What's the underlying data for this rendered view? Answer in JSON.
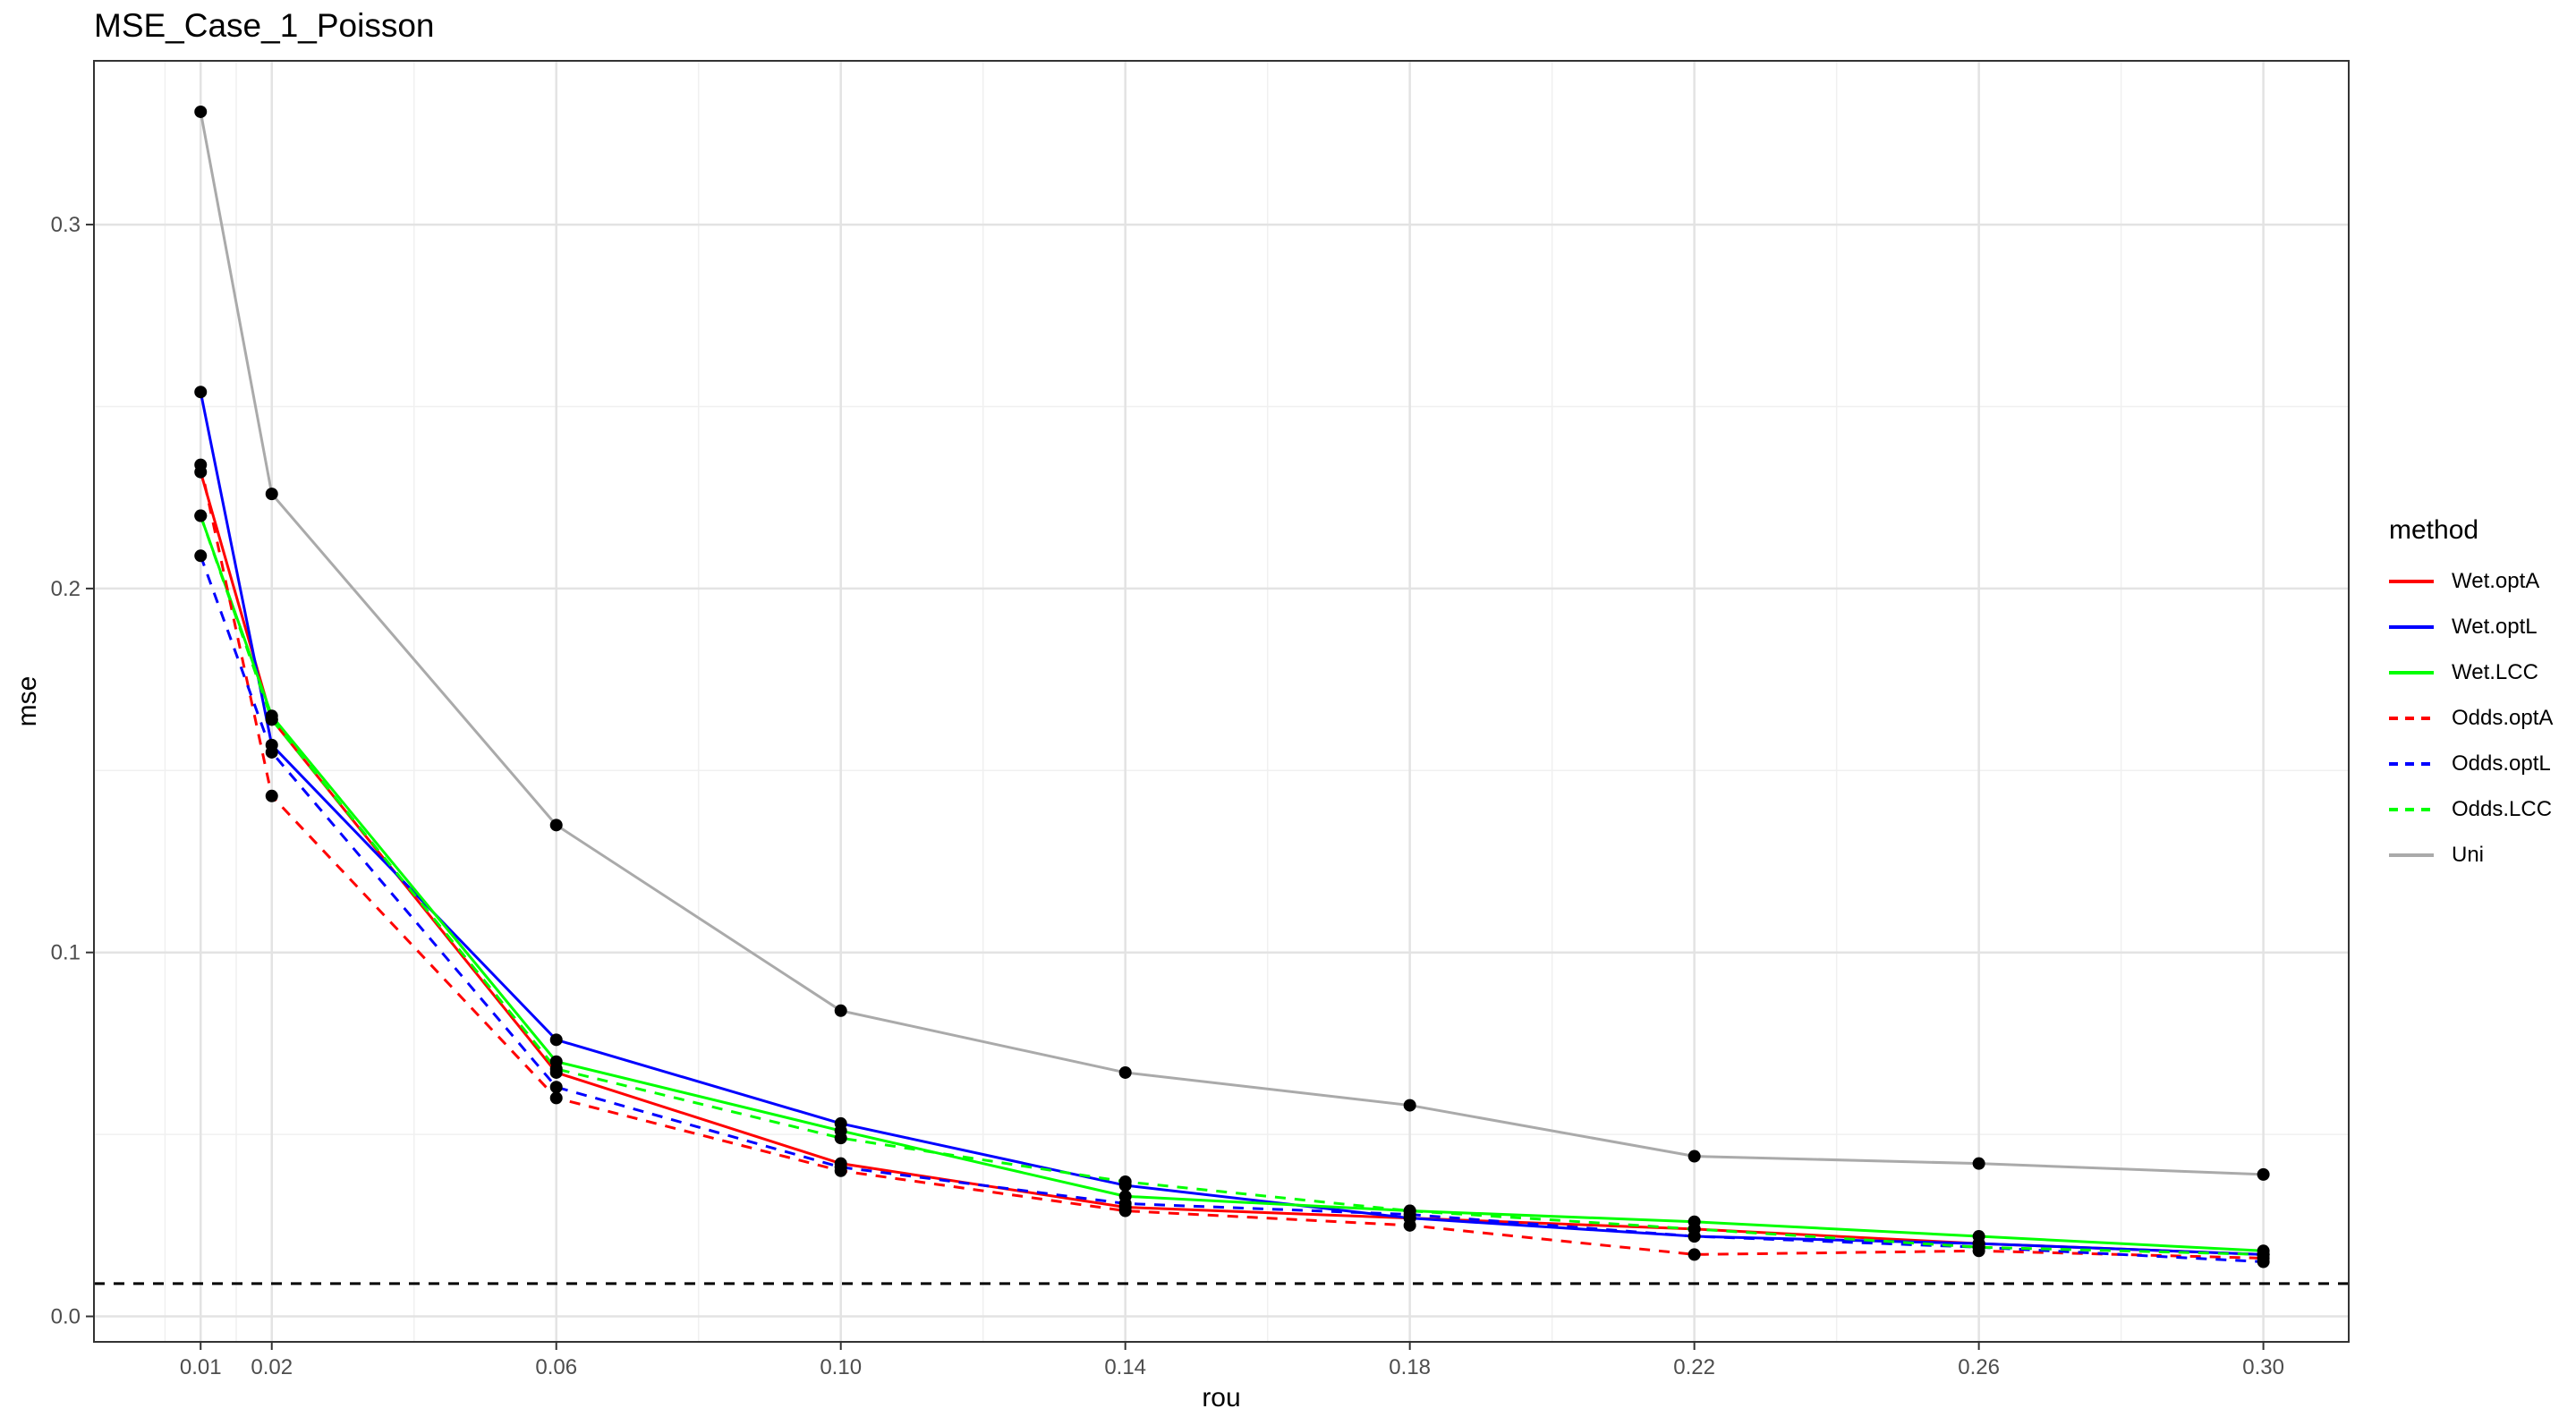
{
  "chart_data": {
    "type": "line",
    "title": "MSE_Case_1_Poisson",
    "xlabel": "rou",
    "ylabel": "mse",
    "x": [
      0.01,
      0.02,
      0.06,
      0.1,
      0.14,
      0.18,
      0.22,
      0.26,
      0.3
    ],
    "x_tick_labels": [
      "0.01",
      "0.02",
      "0.06",
      "0.10",
      "0.14",
      "0.18",
      "0.22",
      "0.26",
      "0.30"
    ],
    "y_ticks": [
      0.0,
      0.1,
      0.2,
      0.3
    ],
    "y_tick_labels": [
      "0.0",
      "0.1",
      "0.2",
      "0.3"
    ],
    "xlim": [
      -0.005,
      0.312
    ],
    "ylim": [
      -0.007,
      0.345
    ],
    "grid": true,
    "legend_position": "right",
    "legend_title": "method",
    "hline": {
      "y": 0.009,
      "style": "dashed",
      "color": "#000000"
    },
    "series": [
      {
        "name": "Wet.optA",
        "color": "#ff0000",
        "linetype": "solid",
        "values": [
          0.232,
          0.164,
          0.067,
          0.042,
          0.03,
          0.027,
          0.024,
          0.02,
          0.017
        ]
      },
      {
        "name": "Wet.optL",
        "color": "#0000ff",
        "linetype": "solid",
        "values": [
          0.254,
          0.157,
          0.076,
          0.053,
          0.036,
          0.027,
          0.022,
          0.02,
          0.017
        ]
      },
      {
        "name": "Wet.LCC",
        "color": "#00ff00",
        "linetype": "solid",
        "values": [
          0.22,
          0.165,
          0.07,
          0.051,
          0.033,
          0.029,
          0.026,
          0.022,
          0.018
        ]
      },
      {
        "name": "Odds.optA",
        "color": "#ff0000",
        "linetype": "dashed",
        "values": [
          0.234,
          0.143,
          0.06,
          0.04,
          0.029,
          0.025,
          0.017,
          0.018,
          0.016
        ]
      },
      {
        "name": "Odds.optL",
        "color": "#0000ff",
        "linetype": "dashed",
        "values": [
          0.209,
          0.155,
          0.063,
          0.041,
          0.031,
          0.028,
          0.022,
          0.019,
          0.015
        ]
      },
      {
        "name": "Odds.LCC",
        "color": "#00ff00",
        "linetype": "dashed",
        "values": [
          0.22,
          0.164,
          0.068,
          0.049,
          0.037,
          0.029,
          0.024,
          0.019,
          0.017
        ]
      },
      {
        "name": "Uni",
        "color": "#aaaaaa",
        "linetype": "solid",
        "values": [
          0.331,
          0.226,
          0.135,
          0.084,
          0.067,
          0.058,
          0.044,
          0.042,
          0.039
        ]
      }
    ]
  }
}
